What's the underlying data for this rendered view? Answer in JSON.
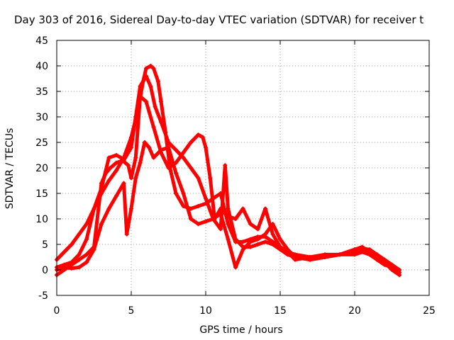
{
  "chart_data": {
    "type": "scatter",
    "title": "Day 303 of 2016, Sidereal Day-to-day VTEC variation (SDTVAR) for receiver t",
    "xlabel": "GPS time / hours",
    "ylabel": "SDTVAR / TECUs",
    "xlim": [
      0,
      25
    ],
    "ylim": [
      -5,
      45
    ],
    "xticks": [
      "0",
      "5",
      "10",
      "15",
      "20",
      "25"
    ],
    "yticks": [
      "-5",
      "0",
      "5",
      "10",
      "15",
      "20",
      "25",
      "30",
      "35",
      "40",
      "45"
    ],
    "grid": true,
    "marker": "+",
    "color": "#ff0000",
    "series": [
      {
        "x": [
          0.0,
          0.5,
          1.0,
          1.5,
          2.0,
          2.5,
          3.0,
          3.5,
          4.0,
          4.5,
          5.0,
          5.5,
          5.8,
          6.0,
          6.3,
          6.5,
          6.8,
          7.0,
          7.3,
          7.6,
          8.0,
          8.5,
          9.0,
          9.5,
          10.0,
          10.5,
          11.0,
          11.5,
          12.0,
          12.5,
          13.0,
          13.5,
          14.0,
          14.5,
          15.0,
          15.5,
          16.0,
          17.0,
          18.0,
          19.0,
          20.0,
          20.5,
          21.0,
          21.5,
          22.0,
          22.5,
          23.0
        ],
        "y": [
          2.0,
          3.5,
          5.0,
          7.0,
          9.0,
          12.0,
          15.0,
          17.5,
          19.5,
          22.0,
          26.0,
          32.0,
          37.0,
          39.5,
          40.0,
          39.5,
          37.0,
          33.0,
          27.0,
          20.0,
          15.0,
          12.5,
          12.0,
          12.5,
          13.0,
          14.0,
          15.0,
          9.0,
          5.5,
          5.5,
          6.0,
          6.5,
          6.5,
          5.5,
          4.5,
          3.5,
          3.0,
          2.5,
          2.8,
          3.0,
          3.5,
          3.8,
          3.5,
          3.0,
          2.0,
          1.0,
          0.0
        ]
      },
      {
        "x": [
          0.0,
          0.5,
          1.0,
          1.5,
          2.0,
          2.5,
          3.0,
          3.3,
          3.6,
          4.0,
          4.5,
          5.0,
          5.3,
          5.6,
          6.0,
          6.3,
          6.6,
          7.0,
          7.5,
          8.0,
          8.5,
          9.0,
          9.5,
          10.0,
          10.5,
          11.0,
          11.3,
          11.5,
          12.0,
          12.5,
          13.0,
          13.5,
          14.0,
          14.5,
          15.0,
          15.5,
          16.0,
          17.0,
          18.0,
          19.0,
          20.0,
          20.5,
          21.0,
          21.5,
          22.0,
          22.5,
          23.0
        ],
        "y": [
          -1.0,
          0.0,
          1.0,
          2.0,
          3.0,
          4.5,
          17.0,
          19.0,
          20.0,
          21.0,
          21.5,
          24.0,
          30.0,
          36.0,
          38.0,
          36.0,
          32.0,
          29.0,
          25.0,
          23.5,
          22.0,
          20.0,
          18.0,
          14.0,
          10.0,
          8.0,
          20.5,
          12.0,
          6.0,
          4.5,
          4.5,
          5.0,
          5.5,
          5.0,
          4.0,
          3.0,
          2.5,
          2.0,
          2.5,
          3.0,
          4.0,
          4.2,
          4.0,
          3.0,
          1.5,
          0.0,
          -1.0
        ]
      },
      {
        "x": [
          0.0,
          0.5,
          1.0,
          1.5,
          2.0,
          2.5,
          3.0,
          3.5,
          4.0,
          4.3,
          4.6,
          4.8,
          5.0,
          5.3,
          5.6,
          6.0,
          6.5,
          7.0,
          7.5,
          8.0,
          8.5,
          9.0,
          9.5,
          9.8,
          10.0,
          10.3,
          10.6,
          11.0,
          11.5,
          12.0,
          12.5,
          13.0,
          13.5,
          14.0,
          14.5,
          15.0,
          15.5,
          16.0,
          17.0,
          18.0,
          19.0,
          20.0,
          20.5,
          21.0,
          21.5,
          22.0,
          22.5,
          23.0
        ],
        "y": [
          0.5,
          1.0,
          1.5,
          3.0,
          6.0,
          12.0,
          16.0,
          22.0,
          22.5,
          22.0,
          21.0,
          20.5,
          18.0,
          22.0,
          34.0,
          33.0,
          28.0,
          23.0,
          20.0,
          21.0,
          23.0,
          25.0,
          26.5,
          26.0,
          24.0,
          18.0,
          10.0,
          12.0,
          10.5,
          10.0,
          12.0,
          9.0,
          8.0,
          12.0,
          7.0,
          4.5,
          3.5,
          2.0,
          2.5,
          3.0,
          3.0,
          4.0,
          4.5,
          3.5,
          2.0,
          1.0,
          0.5,
          -0.5
        ]
      },
      {
        "x": [
          0.0,
          0.5,
          1.0,
          1.5,
          2.0,
          2.5,
          3.0,
          3.5,
          4.0,
          4.5,
          4.7,
          5.0,
          5.3,
          5.6,
          5.9,
          6.2,
          6.5,
          7.0,
          7.5,
          8.0,
          8.5,
          9.0,
          9.5,
          10.0,
          10.5,
          11.0,
          11.5,
          12.0,
          12.5,
          13.0,
          13.5,
          14.0,
          14.5,
          15.0,
          15.5,
          16.0,
          17.0,
          18.0,
          19.0,
          20.0,
          20.5,
          21.0,
          21.5,
          22.0,
          22.5,
          23.0
        ],
        "y": [
          0.0,
          0.5,
          0.3,
          0.5,
          1.5,
          4.0,
          9.0,
          12.0,
          14.5,
          17.0,
          7.0,
          12.0,
          18.0,
          21.0,
          25.0,
          24.0,
          22.0,
          23.5,
          24.0,
          19.0,
          15.0,
          10.0,
          9.0,
          9.5,
          10.0,
          11.0,
          6.0,
          0.5,
          4.0,
          5.5,
          6.0,
          7.0,
          9.0,
          6.0,
          4.0,
          2.5,
          2.0,
          2.5,
          3.0,
          3.0,
          3.5,
          3.0,
          2.0,
          1.5,
          1.0,
          -1.0
        ]
      }
    ]
  }
}
